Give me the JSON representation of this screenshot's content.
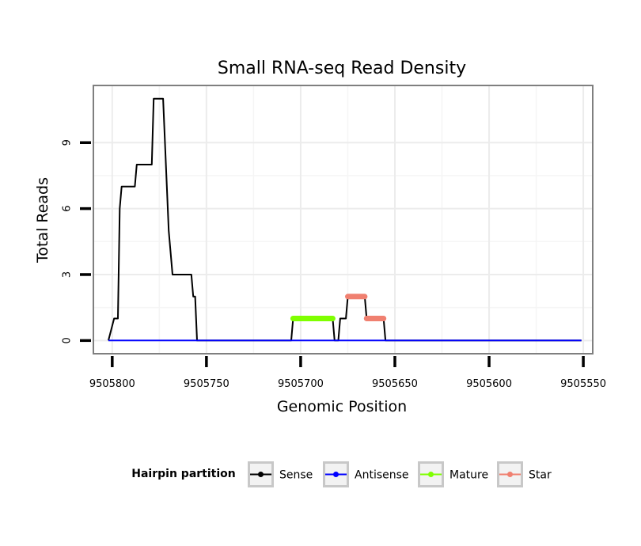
{
  "chart_data": {
    "type": "line",
    "title": "Small RNA-seq Read Density",
    "xlabel": "Genomic Position",
    "ylabel": "Total Reads",
    "x_reversed": true,
    "xlim": [
      9505810,
      9505545
    ],
    "ylim": [
      -0.6,
      11.6
    ],
    "x_ticks": [
      9505800,
      9505750,
      9505700,
      9505650,
      9505600,
      9505550
    ],
    "x_tick_labels": [
      "9505800",
      "9505750",
      "9505700",
      "9505650",
      "9505600",
      "9505550"
    ],
    "y_ticks": [
      0,
      3,
      6,
      9
    ],
    "y_tick_labels": [
      "0",
      "3",
      "6",
      "9"
    ],
    "grid": true,
    "legend": {
      "title": "Hairpin partition",
      "position": "bottom"
    },
    "series": [
      {
        "name": "Sense",
        "color": "#000000",
        "width": "thin",
        "points": [
          [
            9505802,
            0
          ],
          [
            9505799,
            1
          ],
          [
            9505797,
            1
          ],
          [
            9505796,
            6
          ],
          [
            9505795,
            7
          ],
          [
            9505788,
            7
          ],
          [
            9505787,
            8
          ],
          [
            9505779,
            8
          ],
          [
            9505778,
            11
          ],
          [
            9505773,
            11
          ],
          [
            9505770,
            5
          ],
          [
            9505768,
            3
          ],
          [
            9505758,
            3
          ],
          [
            9505757,
            2
          ],
          [
            9505756,
            2
          ],
          [
            9505755,
            0
          ],
          [
            9505705,
            0
          ],
          [
            9505704,
            1
          ],
          [
            9505683,
            1
          ],
          [
            9505682,
            0
          ],
          [
            9505680,
            0
          ],
          [
            9505679,
            1
          ],
          [
            9505676,
            1
          ],
          [
            9505675,
            2
          ],
          [
            9505666,
            2
          ],
          [
            9505665,
            1
          ],
          [
            9505656,
            1
          ],
          [
            9505655,
            0
          ],
          [
            9505551,
            0
          ]
        ]
      },
      {
        "name": "Antisense",
        "color": "#0000ff",
        "width": "thin",
        "points": [
          [
            9505802,
            0
          ],
          [
            9505551,
            0
          ]
        ]
      },
      {
        "name": "Mature",
        "color": "#7fff00",
        "width": "thick",
        "points": [
          [
            9505704,
            1
          ],
          [
            9505683,
            1
          ]
        ]
      },
      {
        "name": "Star",
        "color": "#f08070",
        "width": "thick",
        "segments": [
          [
            [
              9505675,
              2
            ],
            [
              9505666,
              2
            ]
          ],
          [
            [
              9505665,
              1
            ],
            [
              9505656,
              1
            ]
          ]
        ]
      }
    ]
  }
}
